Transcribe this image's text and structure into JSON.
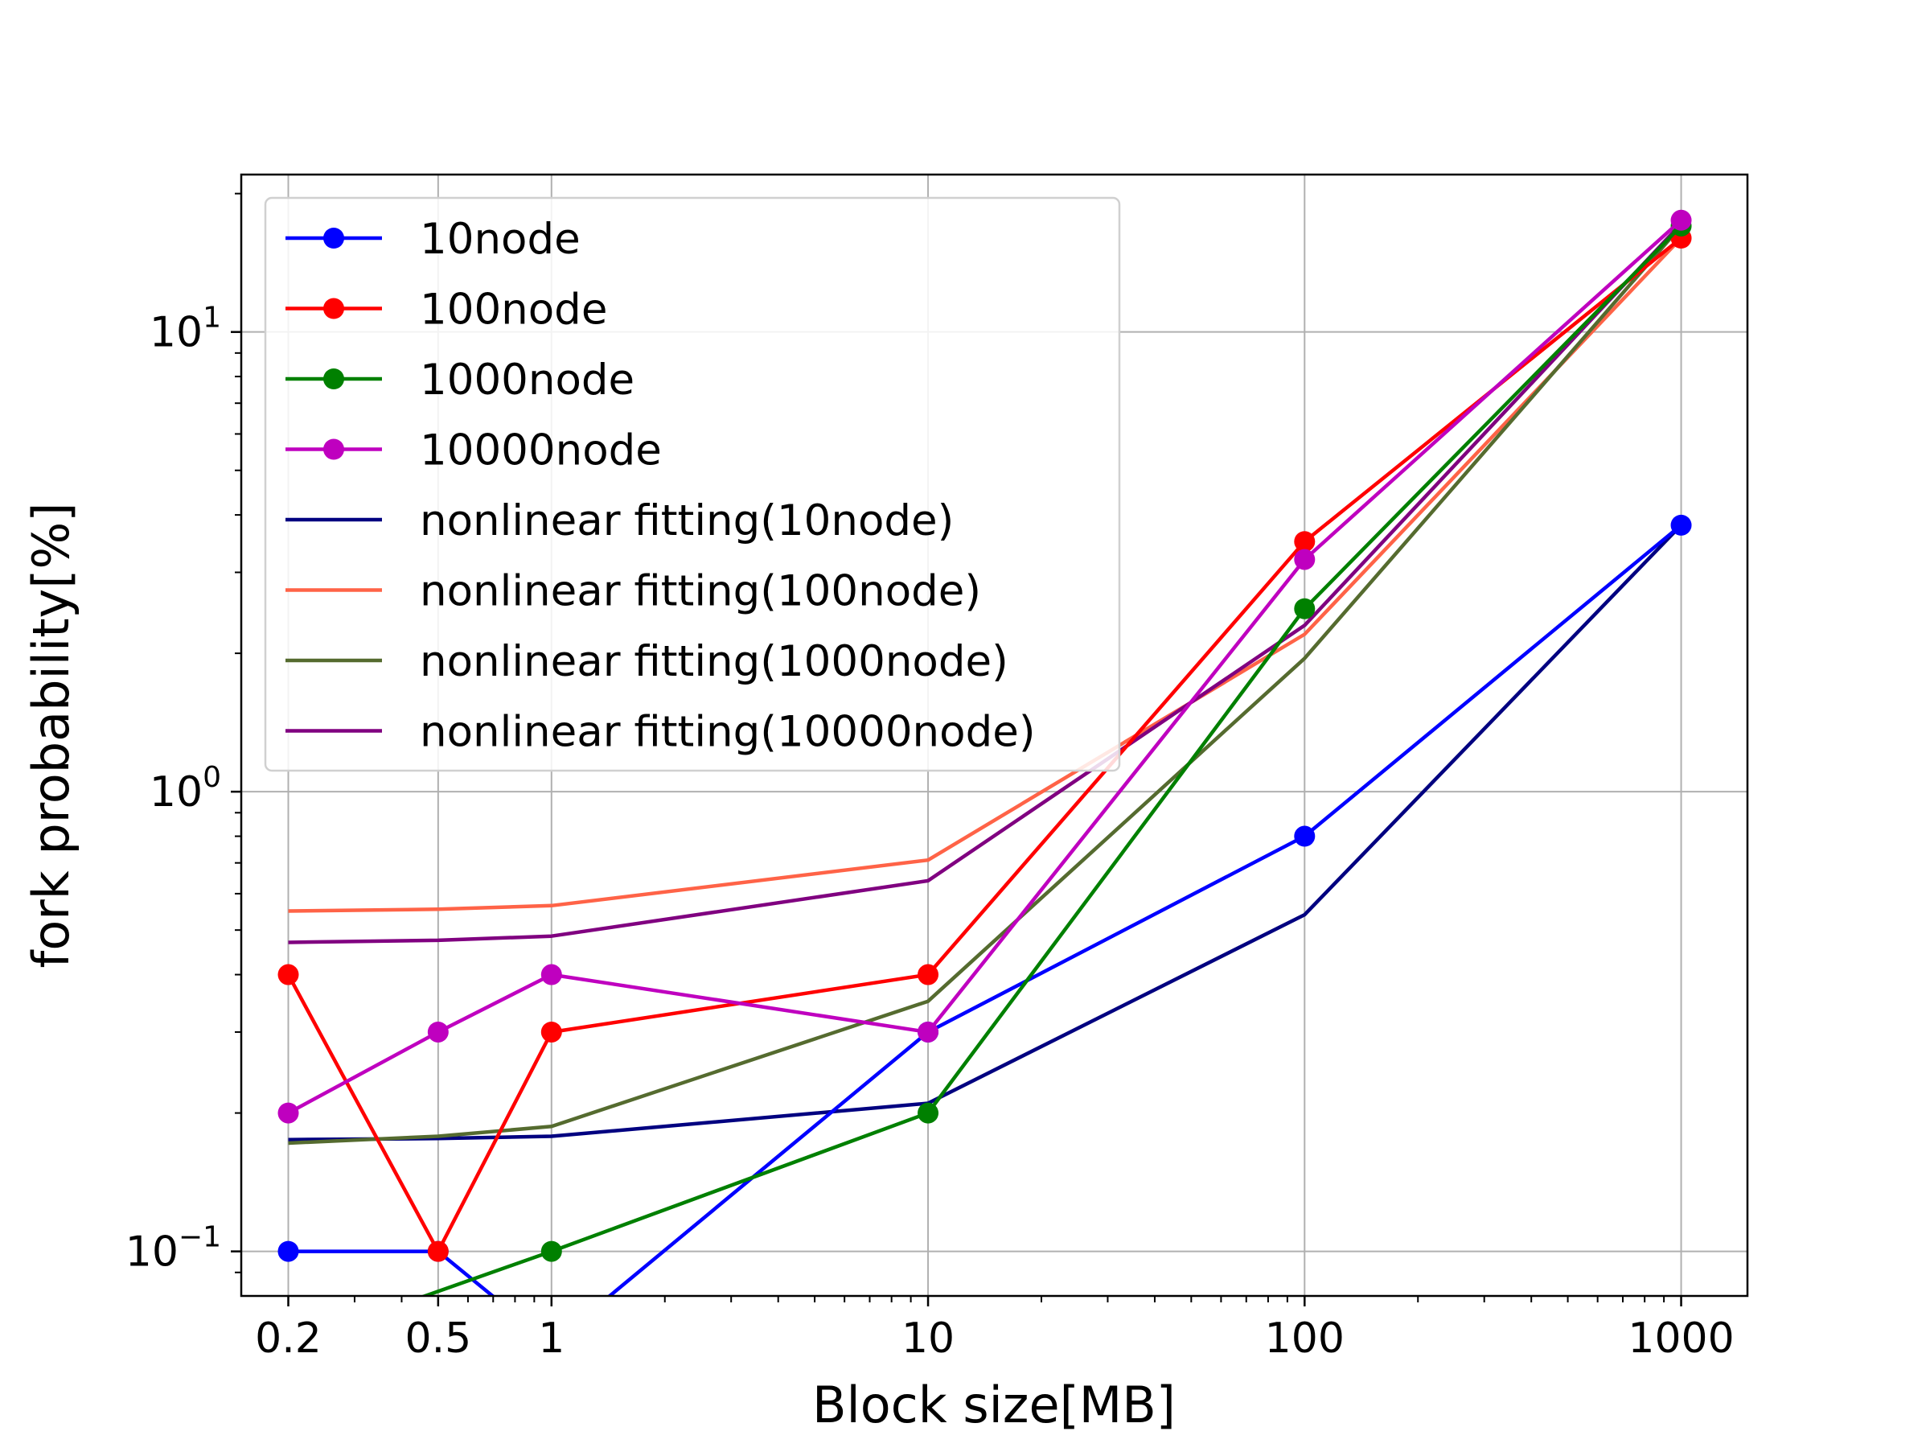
{
  "chart_data": {
    "type": "line",
    "title": "",
    "xlabel": "Block size[MB]",
    "ylabel": "fork probability[%]",
    "xscale": "log",
    "yscale": "log",
    "xlim": [
      0.15,
      1500
    ],
    "ylim": [
      0.08,
      22
    ],
    "grid": true,
    "legend_position": "upper-left",
    "xticks": [
      {
        "value": 0.2,
        "label": "0.2"
      },
      {
        "value": 0.5,
        "label": "0.5"
      },
      {
        "value": 1,
        "label": "1"
      },
      {
        "value": 10,
        "label": "10"
      },
      {
        "value": 100,
        "label": "100"
      },
      {
        "value": 1000,
        "label": "1000"
      }
    ],
    "yticks": [
      {
        "value": 0.1,
        "base": "10",
        "exp": "−1"
      },
      {
        "value": 1,
        "base": "10",
        "exp": "0"
      },
      {
        "value": 10,
        "base": "10",
        "exp": "1"
      }
    ],
    "x": [
      0.2,
      0.5,
      1,
      10,
      100,
      1000
    ],
    "series": [
      {
        "name": "10node",
        "color": "#0000ff",
        "marker": true,
        "values": [
          0.1,
          0.1,
          0,
          0.3,
          0.8,
          3.8
        ]
      },
      {
        "name": "100node",
        "color": "#ff0000",
        "marker": true,
        "values": [
          0.4,
          0.1,
          0.3,
          0.4,
          3.5,
          16
        ]
      },
      {
        "name": "1000node",
        "color": "#008000",
        "marker": true,
        "values": [
          0,
          null,
          0.1,
          0.2,
          2.5,
          17
        ]
      },
      {
        "name": "10000node",
        "color": "#bf00bf",
        "marker": true,
        "values": [
          0.2,
          0.3,
          0.4,
          0.3,
          3.2,
          17.5
        ]
      },
      {
        "name": "nonlinear fitting(10node)",
        "color": "#000080",
        "marker": false,
        "values": [
          0.175,
          0.176,
          0.178,
          0.21,
          0.54,
          3.8
        ]
      },
      {
        "name": "nonlinear fitting(100node)",
        "color": "#ff6347",
        "marker": false,
        "values": [
          0.55,
          0.555,
          0.565,
          0.71,
          2.2,
          16
        ]
      },
      {
        "name": "nonlinear fitting(1000node)",
        "color": "#556b2f",
        "marker": false,
        "values": [
          0.172,
          0.178,
          0.187,
          0.35,
          1.95,
          17
        ]
      },
      {
        "name": "nonlinear fitting(10000node)",
        "color": "#800080",
        "marker": false,
        "values": [
          0.47,
          0.475,
          0.485,
          0.64,
          2.3,
          17.2
        ]
      }
    ]
  }
}
